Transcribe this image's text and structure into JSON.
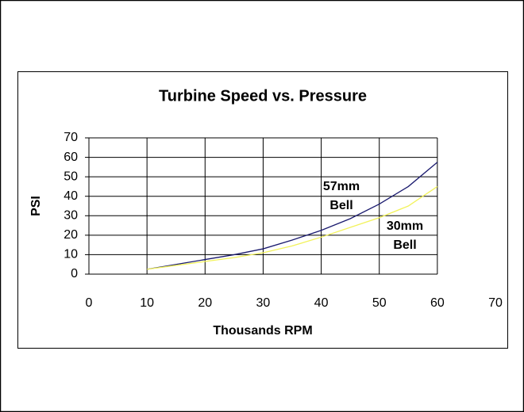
{
  "chart_data": {
    "type": "line",
    "title": "Turbine Speed vs. Pressure",
    "x_label": "Thousands RPM",
    "y_label": "PSI",
    "x": [
      10,
      15,
      20,
      25,
      30,
      35,
      40,
      45,
      50,
      55,
      60
    ],
    "series": [
      {
        "color": "#1a1a6e",
        "values": [
          2.5,
          5,
          7.5,
          10,
          13,
          17.5,
          22.5,
          28.5,
          36,
          45,
          57.5
        ]
      },
      {
        "color": "#f2f25a",
        "values": [
          2.5,
          4.5,
          6.5,
          8.5,
          11,
          14.5,
          19,
          24,
          29,
          35,
          45
        ]
      }
    ],
    "annotations": [
      {
        "lines": [
          "57mm",
          "Bell"
        ]
      },
      {
        "lines": [
          "30mm",
          "Bell"
        ]
      }
    ],
    "xlim": [
      0,
      70
    ],
    "xticks": [
      0,
      10,
      20,
      30,
      40,
      50,
      60,
      70
    ],
    "ylim": [
      0,
      70
    ],
    "yticks": [
      0,
      10,
      20,
      30,
      40,
      50,
      60,
      70
    ],
    "grid": true
  }
}
